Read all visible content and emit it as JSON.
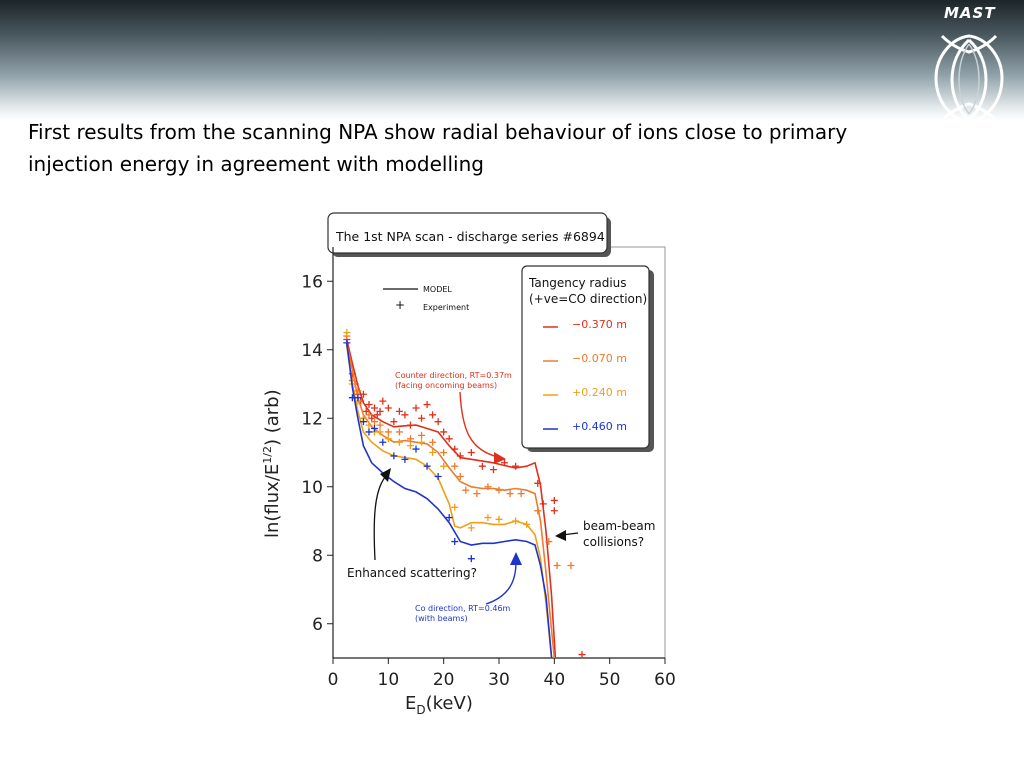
{
  "slide": {
    "logo_text": "MAST",
    "caption": "First results from the scanning NPA show radial behaviour of ions close to primary injection energy in agreement with modelling"
  },
  "chart_data": {
    "type": "line",
    "title": "The 1st NPA scan - discharge series #6894",
    "xlabel": "(keV)",
    "xlabel_main": "E",
    "xlabel_sub": "D",
    "ylabel_pre": "ln(flux/E",
    "ylabel_sup": "1/2",
    "ylabel_post": ") (arb)",
    "xlim": [
      0,
      60
    ],
    "ylim": [
      5,
      17
    ],
    "x_ticks": [
      0,
      10,
      20,
      30,
      40,
      50,
      60
    ],
    "y_ticks": [
      6,
      8,
      10,
      12,
      14,
      16
    ],
    "grid": false,
    "marker_legend": {
      "model": "MODEL",
      "experiment": "Experiment",
      "position": "top-left"
    },
    "legend_title_1": "Tangency radius",
    "legend_title_2": "(+ve=CO direction)",
    "series": [
      {
        "name": "−0.370 m",
        "color": "#e0301c",
        "model": [
          [
            2.5,
            14.3
          ],
          [
            3.5,
            13.6
          ],
          [
            4.5,
            12.95
          ],
          [
            5.5,
            12.45
          ],
          [
            7,
            12.1
          ],
          [
            9,
            11.9
          ],
          [
            11,
            11.75
          ],
          [
            13,
            11.78
          ],
          [
            15,
            11.8
          ],
          [
            17,
            11.7
          ],
          [
            19,
            11.6
          ],
          [
            21,
            11.2
          ],
          [
            23,
            10.85
          ],
          [
            25,
            10.8
          ],
          [
            27,
            10.75
          ],
          [
            29,
            10.7
          ],
          [
            31,
            10.62
          ],
          [
            33,
            10.55
          ],
          [
            35,
            10.6
          ],
          [
            36.5,
            10.7
          ],
          [
            37.5,
            10.05
          ],
          [
            38.5,
            8.7
          ],
          [
            39.5,
            6.8
          ],
          [
            40.2,
            5.0
          ]
        ],
        "points": [
          [
            2.5,
            14.3
          ],
          [
            3.5,
            13.3
          ],
          [
            4,
            13.0
          ],
          [
            4.5,
            12.7
          ],
          [
            5,
            12.5
          ],
          [
            5.5,
            12.7
          ],
          [
            6,
            12.2
          ],
          [
            6.5,
            12.4
          ],
          [
            7,
            12.0
          ],
          [
            7.5,
            12.3
          ],
          [
            8,
            12.1
          ],
          [
            8.5,
            12.2
          ],
          [
            9,
            12.5
          ],
          [
            10,
            12.3
          ],
          [
            11,
            11.9
          ],
          [
            12,
            12.2
          ],
          [
            13,
            12.1
          ],
          [
            14,
            11.8
          ],
          [
            15,
            12.3
          ],
          [
            16,
            12.0
          ],
          [
            17,
            12.4
          ],
          [
            18,
            12.1
          ],
          [
            19,
            11.9
          ],
          [
            20,
            11.6
          ],
          [
            21,
            11.4
          ],
          [
            22,
            11.1
          ],
          [
            23,
            10.9
          ],
          [
            25,
            11.0
          ],
          [
            27,
            10.6
          ],
          [
            29,
            10.5
          ],
          [
            31,
            10.7
          ],
          [
            33,
            10.6
          ],
          [
            37,
            10.1
          ],
          [
            38,
            9.5
          ],
          [
            40,
            9.6
          ],
          [
            40,
            9.3
          ],
          [
            45,
            5.1
          ]
        ]
      },
      {
        "name": "−0.070 m",
        "color": "#f07a2c",
        "model": [
          [
            2.5,
            14.2
          ],
          [
            3.5,
            13.4
          ],
          [
            4.5,
            12.6
          ],
          [
            5.5,
            12.1
          ],
          [
            7,
            11.75
          ],
          [
            9,
            11.5
          ],
          [
            11,
            11.3
          ],
          [
            13,
            11.35
          ],
          [
            15,
            11.3
          ],
          [
            17,
            11.25
          ],
          [
            19,
            11.0
          ],
          [
            21,
            10.55
          ],
          [
            23,
            10.15
          ],
          [
            25,
            10.0
          ],
          [
            27,
            9.95
          ],
          [
            29,
            9.95
          ],
          [
            31,
            9.9
          ],
          [
            33,
            9.95
          ],
          [
            35,
            9.9
          ],
          [
            36.5,
            9.8
          ],
          [
            37.5,
            9.0
          ],
          [
            38.5,
            7.5
          ],
          [
            39.5,
            5.8
          ],
          [
            40,
            5.0
          ]
        ],
        "points": [
          [
            2.5,
            14.4
          ],
          [
            3.5,
            13.1
          ],
          [
            4.5,
            12.8
          ],
          [
            5.5,
            12.0
          ],
          [
            6.5,
            12.1
          ],
          [
            7.5,
            11.9
          ],
          [
            8.5,
            11.8
          ],
          [
            10,
            11.6
          ],
          [
            12,
            11.6
          ],
          [
            14,
            11.4
          ],
          [
            16,
            11.5
          ],
          [
            18,
            11.3
          ],
          [
            20,
            11.0
          ],
          [
            22,
            10.6
          ],
          [
            23,
            10.3
          ],
          [
            24,
            9.9
          ],
          [
            26,
            9.8
          ],
          [
            28,
            10.0
          ],
          [
            30,
            9.9
          ],
          [
            32,
            9.8
          ],
          [
            34,
            9.8
          ],
          [
            37,
            9.3
          ],
          [
            39,
            8.4
          ],
          [
            40.5,
            7.7
          ],
          [
            43,
            7.7
          ]
        ]
      },
      {
        "name": "+0.240 m",
        "color": "#f0a018",
        "model": [
          [
            2.5,
            14.1
          ],
          [
            3.5,
            13.0
          ],
          [
            4.5,
            12.2
          ],
          [
            5.5,
            11.6
          ],
          [
            7,
            11.3
          ],
          [
            9,
            11.05
          ],
          [
            11,
            10.9
          ],
          [
            13,
            10.85
          ],
          [
            15,
            10.8
          ],
          [
            17,
            10.6
          ],
          [
            19,
            10.25
          ],
          [
            21,
            9.5
          ],
          [
            22,
            8.85
          ],
          [
            23,
            8.8
          ],
          [
            25,
            8.95
          ],
          [
            27,
            8.95
          ],
          [
            29,
            8.9
          ],
          [
            31,
            8.9
          ],
          [
            33,
            9.0
          ],
          [
            35,
            8.9
          ],
          [
            36.5,
            8.6
          ],
          [
            37.5,
            7.9
          ],
          [
            38.5,
            6.6
          ],
          [
            39.5,
            5.0
          ]
        ],
        "points": [
          [
            2.5,
            14.5
          ],
          [
            3.5,
            13.0
          ],
          [
            4.5,
            12.5
          ],
          [
            5.5,
            12.0
          ],
          [
            6.5,
            11.8
          ],
          [
            7.5,
            11.6
          ],
          [
            8.5,
            11.6
          ],
          [
            10,
            11.4
          ],
          [
            12,
            11.3
          ],
          [
            14,
            11.2
          ],
          [
            16,
            11.3
          ],
          [
            18,
            11.0
          ],
          [
            20,
            10.6
          ],
          [
            22,
            9.4
          ],
          [
            25,
            8.8
          ],
          [
            28,
            9.1
          ],
          [
            30,
            9.05
          ],
          [
            33,
            9.0
          ],
          [
            35,
            8.9
          ]
        ]
      },
      {
        "name": "+0.460 m",
        "color": "#1f35c9",
        "model": [
          [
            2.5,
            14.2
          ],
          [
            3.5,
            12.9
          ],
          [
            4.5,
            12.0
          ],
          [
            5.5,
            11.2
          ],
          [
            7,
            10.7
          ],
          [
            9,
            10.4
          ],
          [
            11,
            10.15
          ],
          [
            13,
            9.95
          ],
          [
            15,
            9.85
          ],
          [
            17,
            9.65
          ],
          [
            19,
            9.35
          ],
          [
            21,
            8.95
          ],
          [
            23,
            8.4
          ],
          [
            25,
            8.3
          ],
          [
            27,
            8.35
          ],
          [
            29,
            8.35
          ],
          [
            31,
            8.4
          ],
          [
            33,
            8.45
          ],
          [
            35,
            8.4
          ],
          [
            36.5,
            8.3
          ],
          [
            37.5,
            7.7
          ],
          [
            38.5,
            6.8
          ],
          [
            39.5,
            5.0
          ]
        ],
        "points": [
          [
            2.5,
            14.2
          ],
          [
            3.5,
            12.6
          ],
          [
            4.5,
            12.6
          ],
          [
            5.5,
            11.9
          ],
          [
            6.5,
            11.6
          ],
          [
            7.5,
            11.7
          ],
          [
            9,
            11.3
          ],
          [
            11,
            10.9
          ],
          [
            13,
            10.8
          ],
          [
            15,
            11.1
          ],
          [
            17,
            10.6
          ],
          [
            19,
            10.3
          ],
          [
            21,
            9.1
          ],
          [
            22,
            8.4
          ],
          [
            25,
            7.9
          ]
        ]
      }
    ],
    "annotations": {
      "counter": [
        "Counter direction, RT=0.37m",
        "(facing oncoming beams)"
      ],
      "co": [
        "Co direction, RT=0.46m",
        "(with beams)"
      ],
      "scattering": "Enhanced scattering?",
      "beam": [
        "beam-beam",
        "collisions?"
      ]
    }
  }
}
